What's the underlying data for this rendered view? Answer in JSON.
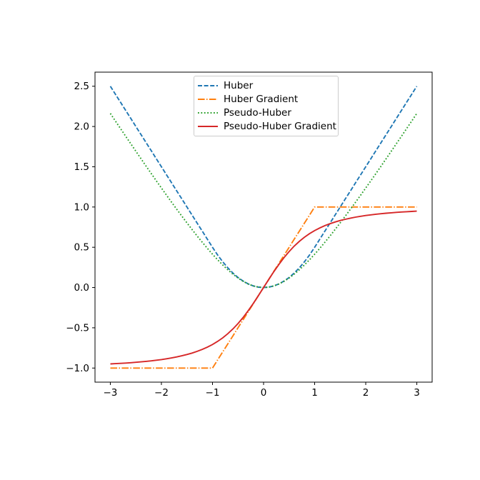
{
  "figure": {
    "background": "#ffffff",
    "axes_color": "#000000",
    "legend_border_color": "#cccccc",
    "legend_background": "rgba(255,255,255,0.8)"
  },
  "chart_data": {
    "type": "line",
    "title": "",
    "xlabel": "",
    "ylabel": "",
    "grid": false,
    "xlim": [
      -3.3,
      3.3
    ],
    "ylim": [
      -1.175,
      2.675
    ],
    "xticks": {
      "values": [
        -3,
        -2,
        -1,
        0,
        1,
        2,
        3
      ],
      "labels": [
        "−3",
        "−2",
        "−1",
        "0",
        "1",
        "2",
        "3"
      ]
    },
    "yticks": {
      "values": [
        -1.0,
        -0.5,
        0.0,
        0.5,
        1.0,
        1.5,
        2.0,
        2.5
      ],
      "labels": [
        "−1.0",
        "−0.5",
        "0.0",
        "0.5",
        "1.0",
        "1.5",
        "2.0",
        "2.5"
      ]
    },
    "legend": {
      "position": "upper center inside axes",
      "entries": [
        "Huber",
        "Huber Gradient",
        "Pseudo-Huber",
        "Pseudo-Huber Gradient"
      ]
    },
    "x": [
      -3,
      -2.9,
      -2.8,
      -2.7,
      -2.6,
      -2.5,
      -2.4,
      -2.3,
      -2.2,
      -2.1,
      -2,
      -1.9,
      -1.8,
      -1.7,
      -1.6,
      -1.5,
      -1.4,
      -1.3,
      -1.2,
      -1.1,
      -1,
      -0.9,
      -0.8,
      -0.7,
      -0.6,
      -0.5,
      -0.4,
      -0.3,
      -0.2,
      -0.1,
      0,
      0.1,
      0.2,
      0.3,
      0.4,
      0.5,
      0.6,
      0.7,
      0.8,
      0.9,
      1,
      1.1,
      1.2,
      1.3,
      1.4,
      1.5,
      1.6,
      1.7,
      1.8,
      1.9,
      2,
      2.1,
      2.2,
      2.3,
      2.4,
      2.5,
      2.6,
      2.7,
      2.8,
      2.9,
      3
    ],
    "series": [
      {
        "name": "Huber",
        "color": "#1f77b4",
        "style": "dashed",
        "values": [
          2.5,
          2.4,
          2.3,
          2.2,
          2.1,
          2,
          1.9,
          1.8,
          1.7,
          1.6,
          1.5,
          1.4,
          1.3,
          1.2,
          1.1,
          1,
          0.9,
          0.8,
          0.7,
          0.6,
          0.5,
          0.405,
          0.32,
          0.245,
          0.18,
          0.125,
          0.08,
          0.045,
          0.02,
          0.005,
          0,
          0.005,
          0.02,
          0.045,
          0.08,
          0.125,
          0.18,
          0.245,
          0.32,
          0.405,
          0.5,
          0.6,
          0.7,
          0.8,
          0.9,
          1,
          1.1,
          1.2,
          1.3,
          1.4,
          1.5,
          1.6,
          1.7,
          1.8,
          1.9,
          2,
          2.1,
          2.2,
          2.3,
          2.4,
          2.5
        ]
      },
      {
        "name": "Huber Gradient",
        "color": "#ff7f0e",
        "style": "dashdot",
        "values": [
          -1,
          -1,
          -1,
          -1,
          -1,
          -1,
          -1,
          -1,
          -1,
          -1,
          -1,
          -1,
          -1,
          -1,
          -1,
          -1,
          -1,
          -1,
          -1,
          -1,
          -1,
          -0.9,
          -0.8,
          -0.7,
          -0.6,
          -0.5,
          -0.4,
          -0.3,
          -0.2,
          -0.1,
          0,
          0.1,
          0.2,
          0.3,
          0.4,
          0.5,
          0.6,
          0.7,
          0.8,
          0.9,
          1,
          1,
          1,
          1,
          1,
          1,
          1,
          1,
          1,
          1,
          1,
          1,
          1,
          1,
          1,
          1,
          1,
          1,
          1,
          1,
          1
        ]
      },
      {
        "name": "Pseudo-Huber",
        "color": "#2ca02c",
        "style": "dotted",
        "values": [
          2.1623,
          2.0676,
          1.9732,
          1.8792,
          1.7857,
          1.6926,
          1.6,
          1.508,
          1.4166,
          1.3259,
          1.2361,
          1.1471,
          1.0591,
          0.9723,
          0.8868,
          0.8028,
          0.7205,
          0.6401,
          0.562,
          0.4866,
          0.4142,
          0.3454,
          0.2806,
          0.2207,
          0.1662,
          0.118,
          0.077,
          0.044,
          0.0198,
          0.005,
          0,
          0.005,
          0.0198,
          0.044,
          0.077,
          0.118,
          0.1662,
          0.2207,
          0.2806,
          0.3454,
          0.4142,
          0.4866,
          0.562,
          0.6401,
          0.7205,
          0.8028,
          0.8868,
          0.9723,
          1.0591,
          1.1471,
          1.2361,
          1.3259,
          1.4166,
          1.508,
          1.6,
          1.6926,
          1.7857,
          1.8792,
          1.9732,
          2.0676,
          2.1623
        ]
      },
      {
        "name": "Pseudo-Huber Gradient",
        "color": "#d62728",
        "style": "solid",
        "values": [
          -0.9487,
          -0.9454,
          -0.9417,
          -0.9378,
          -0.9333,
          -0.9285,
          -0.9231,
          -0.9171,
          -0.9104,
          -0.9029,
          -0.8944,
          -0.8849,
          -0.8742,
          -0.8619,
          -0.848,
          -0.8321,
          -0.8137,
          -0.7926,
          -0.7682,
          -0.7399,
          -0.7071,
          -0.669,
          -0.6247,
          -0.5734,
          -0.5145,
          -0.4472,
          -0.3714,
          -0.2873,
          -0.1961,
          -0.0995,
          0,
          0.0995,
          0.1961,
          0.2873,
          0.3714,
          0.4472,
          0.5145,
          0.5734,
          0.6247,
          0.669,
          0.7071,
          0.7399,
          0.7682,
          0.7926,
          0.8137,
          0.8321,
          0.848,
          0.8619,
          0.8742,
          0.8849,
          0.8944,
          0.9029,
          0.9104,
          0.9171,
          0.9231,
          0.9285,
          0.9333,
          0.9378,
          0.9417,
          0.9454,
          0.9487
        ]
      }
    ]
  }
}
